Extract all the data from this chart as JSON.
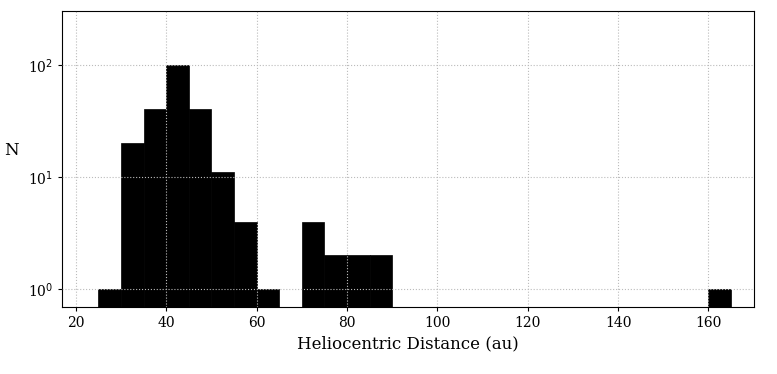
{
  "bin_edges": [
    20,
    25,
    30,
    35,
    40,
    45,
    50,
    55,
    60,
    65,
    70,
    75,
    80,
    85,
    90,
    95,
    100,
    105,
    110,
    115,
    120,
    125,
    130,
    135,
    140,
    145,
    150,
    155,
    160,
    165
  ],
  "counts": [
    0,
    1,
    20,
    40,
    100,
    40,
    11,
    4,
    1,
    0,
    4,
    2,
    2,
    2,
    0,
    0,
    0,
    0,
    0,
    0,
    0,
    0,
    0,
    0,
    0,
    0,
    0,
    0,
    1,
    0
  ],
  "bar_color": "#000000",
  "xlabel": "Heliocentric Distance (au)",
  "ylabel": "N",
  "xlim": [
    17,
    170
  ],
  "ylim_log": [
    0.7,
    300
  ],
  "xticks": [
    20,
    40,
    60,
    80,
    100,
    120,
    140,
    160
  ],
  "yticks": [
    1,
    10,
    100
  ],
  "ytick_labels": [
    "10$^0$",
    "10$^1$",
    "10$^2$"
  ],
  "grid_color": "#bbbbbb",
  "background_color": "#ffffff",
  "figsize": [
    7.77,
    3.74
  ],
  "dpi": 100
}
